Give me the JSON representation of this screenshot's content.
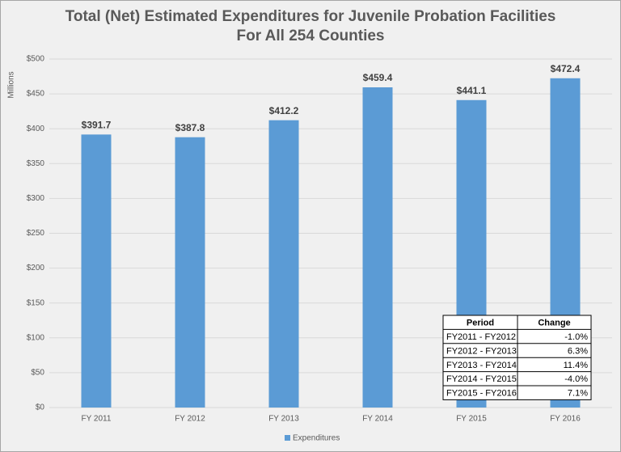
{
  "chart_data": {
    "type": "bar",
    "title": "Total (Net) Estimated Expenditures for Juvenile Probation Facilities",
    "subtitle": "For All 254 Counties",
    "y_label": "Millions",
    "categories": [
      "FY 2011",
      "FY 2012",
      "FY 2013",
      "FY 2014",
      "FY 2015",
      "FY 2016"
    ],
    "series": [
      {
        "name": "Expenditures",
        "color": "#5b9bd5",
        "values": [
          391.7,
          387.8,
          412.2,
          459.4,
          441.1,
          472.4
        ],
        "value_labels": [
          "$391.7",
          "$387.8",
          "$412.2",
          "$459.4",
          "$441.1",
          "$472.4"
        ]
      }
    ],
    "ylim": [
      0,
      500
    ],
    "yticks": [
      {
        "value": 0,
        "label": "$0"
      },
      {
        "value": 50,
        "label": "$50"
      },
      {
        "value": 100,
        "label": "$100"
      },
      {
        "value": 150,
        "label": "$150"
      },
      {
        "value": 200,
        "label": "$200"
      },
      {
        "value": 250,
        "label": "$250"
      },
      {
        "value": 300,
        "label": "$300"
      },
      {
        "value": 350,
        "label": "$350"
      },
      {
        "value": 400,
        "label": "$400"
      },
      {
        "value": 450,
        "label": "$450"
      },
      {
        "value": 500,
        "label": "$500"
      }
    ],
    "grid": true,
    "legend": "bottom",
    "table": {
      "columns": [
        "Period",
        "Change"
      ],
      "rows": [
        [
          "FY2011 - FY2012",
          "-1.0%"
        ],
        [
          "FY2012 - FY2013",
          "6.3%"
        ],
        [
          "FY2013 - FY2014",
          "11.4%"
        ],
        [
          "FY2014 - FY2015",
          "-4.0%"
        ],
        [
          "FY2015 - FY2016",
          "7.1%"
        ]
      ]
    }
  }
}
